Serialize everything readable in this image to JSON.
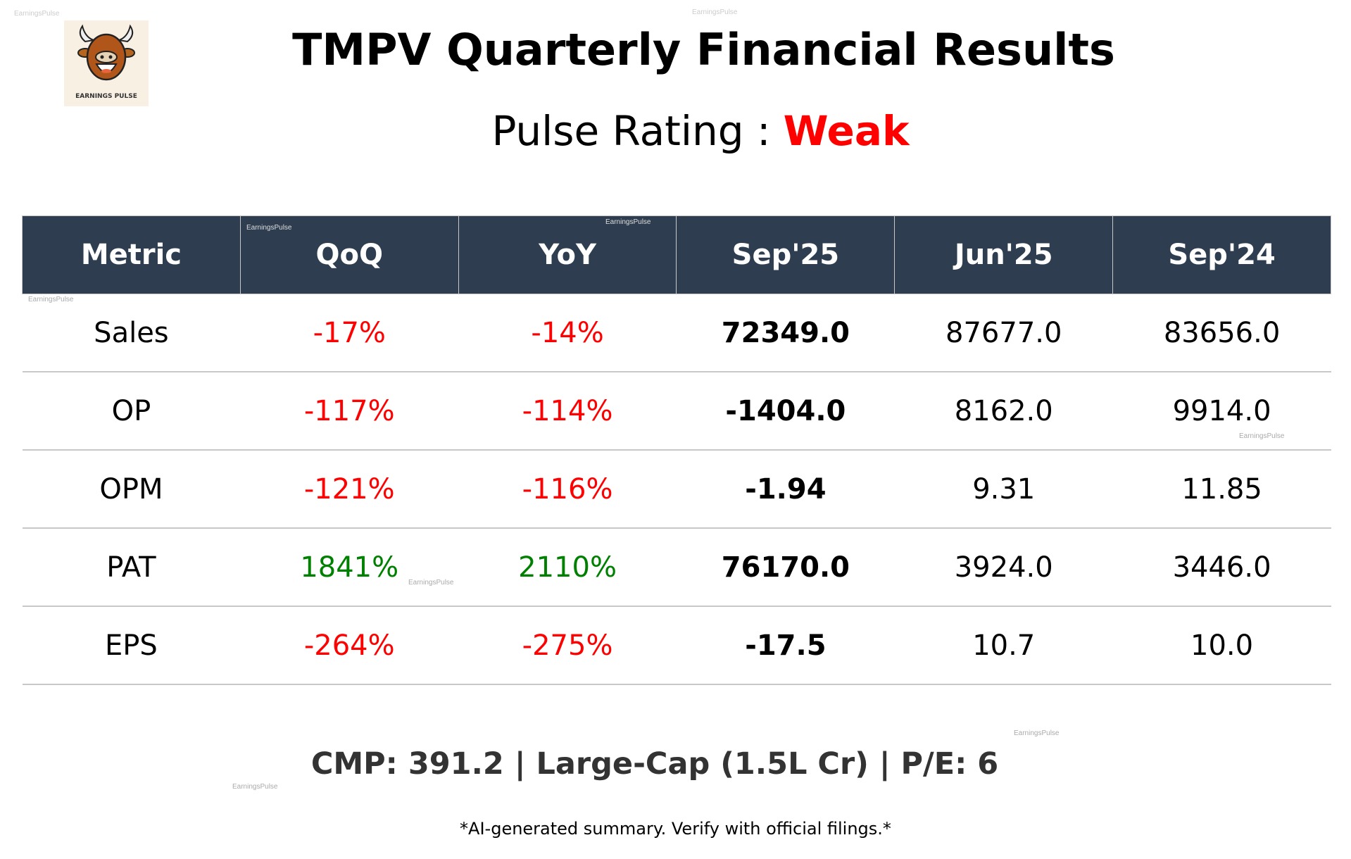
{
  "title": "TMPV Quarterly Financial Results",
  "rating": {
    "label": "Pulse Rating :",
    "value": "Weak",
    "color": "#ff0000"
  },
  "logo": {
    "text": "EARNINGS PULSE",
    "icon": "bull-icon"
  },
  "watermark": "EarningsPulse",
  "table": {
    "headers": [
      "Metric",
      "QoQ",
      "YoY",
      "Sep'25",
      "Jun'25",
      "Sep'24"
    ],
    "rows": [
      {
        "metric": "Sales",
        "qoq": "-17%",
        "yoy": "-14%",
        "sep25": "72349.0",
        "jun25": "87677.0",
        "sep24": "83656.0",
        "qoq_color": "#ff0000",
        "yoy_color": "#ff0000"
      },
      {
        "metric": "OP",
        "qoq": "-117%",
        "yoy": "-114%",
        "sep25": "-1404.0",
        "jun25": "8162.0",
        "sep24": "9914.0",
        "qoq_color": "#ff0000",
        "yoy_color": "#ff0000"
      },
      {
        "metric": "OPM",
        "qoq": "-121%",
        "yoy": "-116%",
        "sep25": "-1.94",
        "jun25": "9.31",
        "sep24": "11.85",
        "qoq_color": "#ff0000",
        "yoy_color": "#ff0000"
      },
      {
        "metric": "PAT",
        "qoq": "1841%",
        "yoy": "2110%",
        "sep25": "76170.0",
        "jun25": "3924.0",
        "sep24": "3446.0",
        "qoq_color": "#008000",
        "yoy_color": "#008000"
      },
      {
        "metric": "EPS",
        "qoq": "-264%",
        "yoy": "-275%",
        "sep25": "-17.5",
        "jun25": "10.7",
        "sep24": "10.0",
        "qoq_color": "#ff0000",
        "yoy_color": "#ff0000"
      }
    ]
  },
  "summary": "CMP: 391.2 | Large-Cap (1.5L Cr) | P/E: 6",
  "footnote": "*AI-generated summary. Verify with official filings.*"
}
